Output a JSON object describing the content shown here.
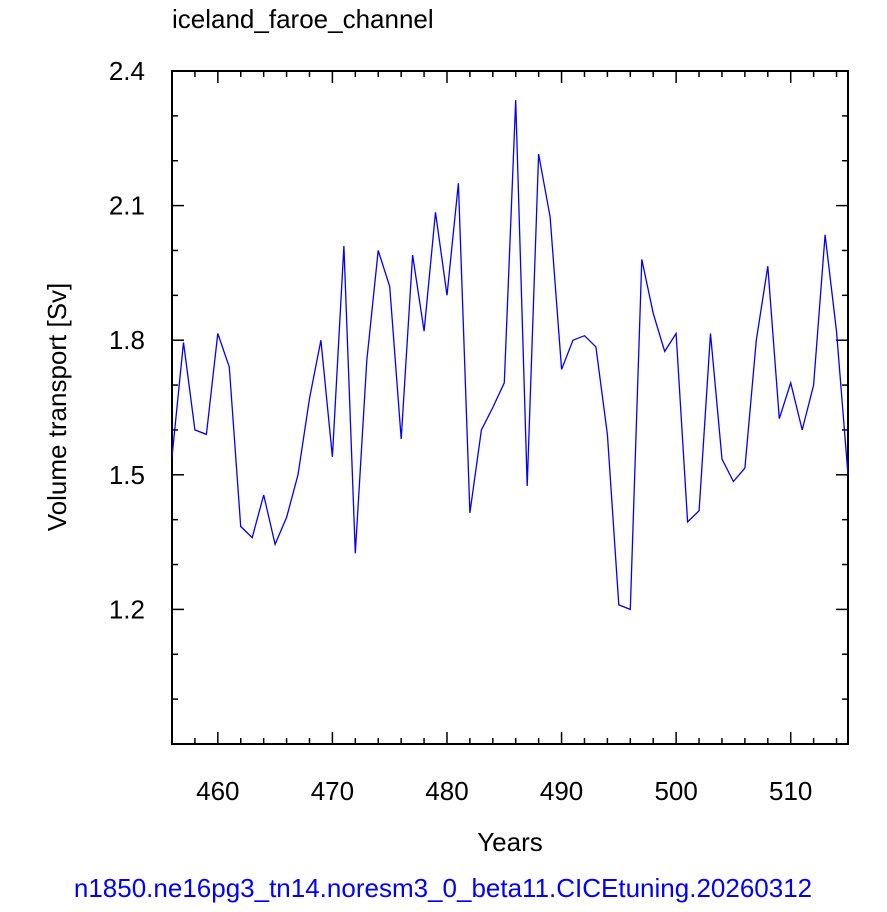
{
  "chart_data": {
    "type": "line",
    "title": "iceland_faroe_channel",
    "xlabel": "Years",
    "ylabel": "Volume transport [Sv]",
    "caption": "n1850.ne16pg3_tn14.noresm3_0_beta11.CICEtuning.20260312",
    "xlim": [
      456,
      515
    ],
    "ylim": [
      0.9,
      2.4
    ],
    "x_ticks": [
      460,
      470,
      480,
      490,
      500,
      510
    ],
    "x_tick_labels": [
      "460",
      "470",
      "480",
      "490",
      "500",
      "510"
    ],
    "y_ticks": [
      1.2,
      1.5,
      1.8,
      2.1,
      2.4
    ],
    "y_tick_labels": [
      "1.2",
      "1.5",
      "1.8",
      "2.1",
      "2.4"
    ],
    "grid": false,
    "line_color": "#0000ff",
    "caption_color": "#0000ff",
    "series": [
      {
        "x": [
          456,
          457,
          458,
          459,
          460,
          461,
          462,
          463,
          464,
          465,
          466,
          467,
          468,
          469,
          470,
          471,
          472,
          473,
          474,
          475,
          476,
          477,
          478,
          479,
          480,
          481,
          482,
          483,
          484,
          485,
          486,
          487,
          488,
          489,
          490,
          491,
          492,
          493,
          494,
          495,
          496,
          497,
          498,
          499,
          500,
          501,
          502,
          503,
          504,
          505,
          506,
          507,
          508,
          509,
          510,
          511,
          512,
          513,
          514,
          515
        ],
        "y": [
          1.54,
          1.795,
          1.6,
          1.59,
          1.815,
          1.74,
          1.385,
          1.36,
          1.455,
          1.345,
          1.405,
          1.5,
          1.67,
          1.8,
          1.54,
          2.01,
          1.325,
          1.755,
          2.0,
          1.92,
          1.58,
          1.99,
          1.82,
          2.085,
          1.9,
          2.15,
          1.415,
          1.6,
          1.65,
          1.705,
          2.335,
          1.475,
          2.215,
          2.075,
          1.735,
          1.8,
          1.81,
          1.785,
          1.59,
          1.21,
          1.2,
          1.98,
          1.86,
          1.775,
          1.815,
          1.395,
          1.42,
          1.815,
          1.535,
          1.485,
          1.515,
          1.8,
          1.965,
          1.625,
          1.705,
          1.6,
          1.7,
          2.035,
          1.82,
          1.5
        ]
      }
    ]
  }
}
